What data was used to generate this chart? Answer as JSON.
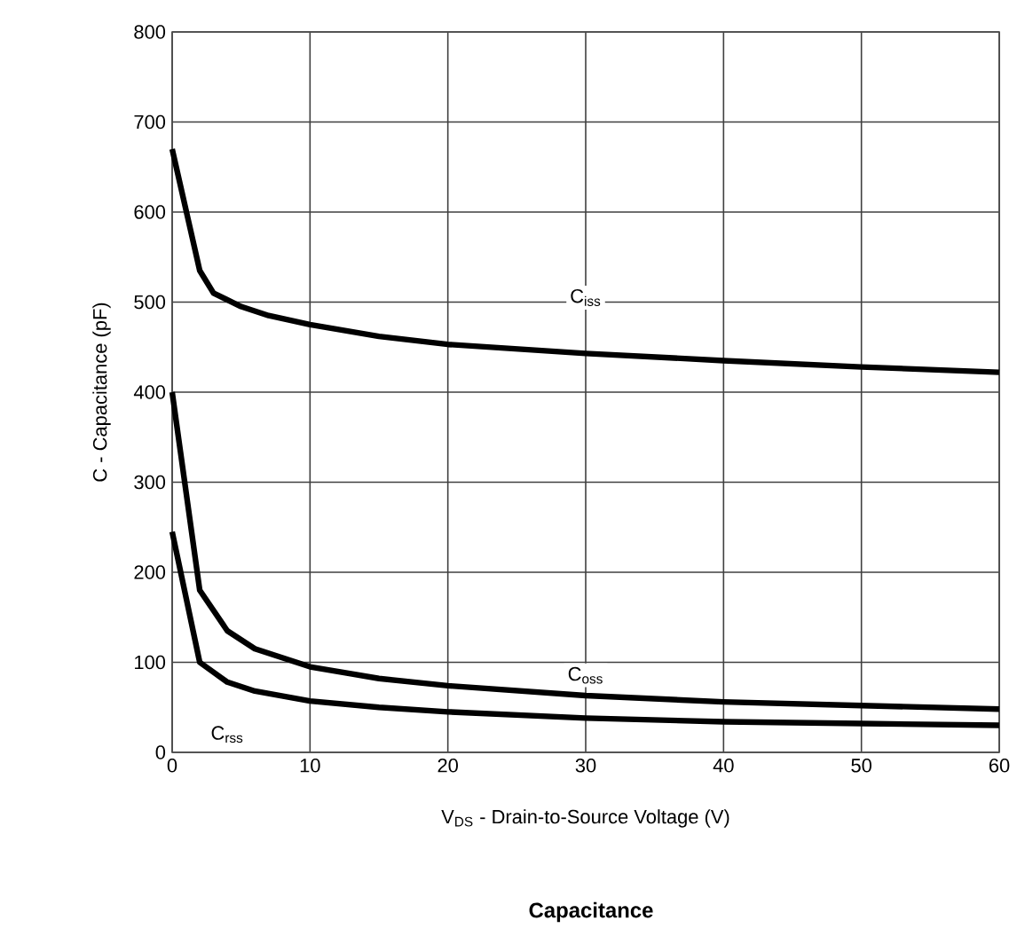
{
  "chart_data": {
    "type": "line",
    "title": "Capacitance",
    "xlabel": "V$_{DS}$  -  Drain-to-Source Voltage (V)",
    "ylabel": "C  -  Capacitance (pF)",
    "xlim": [
      0,
      60
    ],
    "xticks": [
      0,
      10,
      20,
      30,
      40,
      50,
      60
    ],
    "ylim": [
      0,
      800
    ],
    "yticks": [
      0,
      100,
      200,
      300,
      400,
      500,
      600,
      700,
      800
    ],
    "grid": true,
    "marker": "none",
    "line_style": "solid",
    "series": [
      {
        "name": "C$_{iss}$",
        "color": "#000000",
        "x": [
          0,
          2,
          3,
          5,
          7,
          10,
          15,
          20,
          30,
          40,
          50,
          60
        ],
        "values": [
          670,
          535,
          510,
          495,
          485,
          475,
          462,
          453,
          443,
          435,
          428,
          422
        ]
      },
      {
        "name": "C$_{oss}$",
        "color": "#000000",
        "x": [
          0,
          2,
          4,
          6,
          10,
          15,
          20,
          30,
          40,
          50,
          60
        ],
        "values": [
          400,
          180,
          135,
          115,
          95,
          82,
          74,
          63,
          56,
          52,
          48
        ]
      },
      {
        "name": "C$_{rss}$",
        "color": "#000000",
        "x": [
          0,
          2,
          4,
          6,
          10,
          15,
          20,
          30,
          40,
          50,
          60
        ],
        "values": [
          245,
          100,
          78,
          68,
          57,
          50,
          45,
          38,
          34,
          32,
          30
        ]
      }
    ]
  }
}
